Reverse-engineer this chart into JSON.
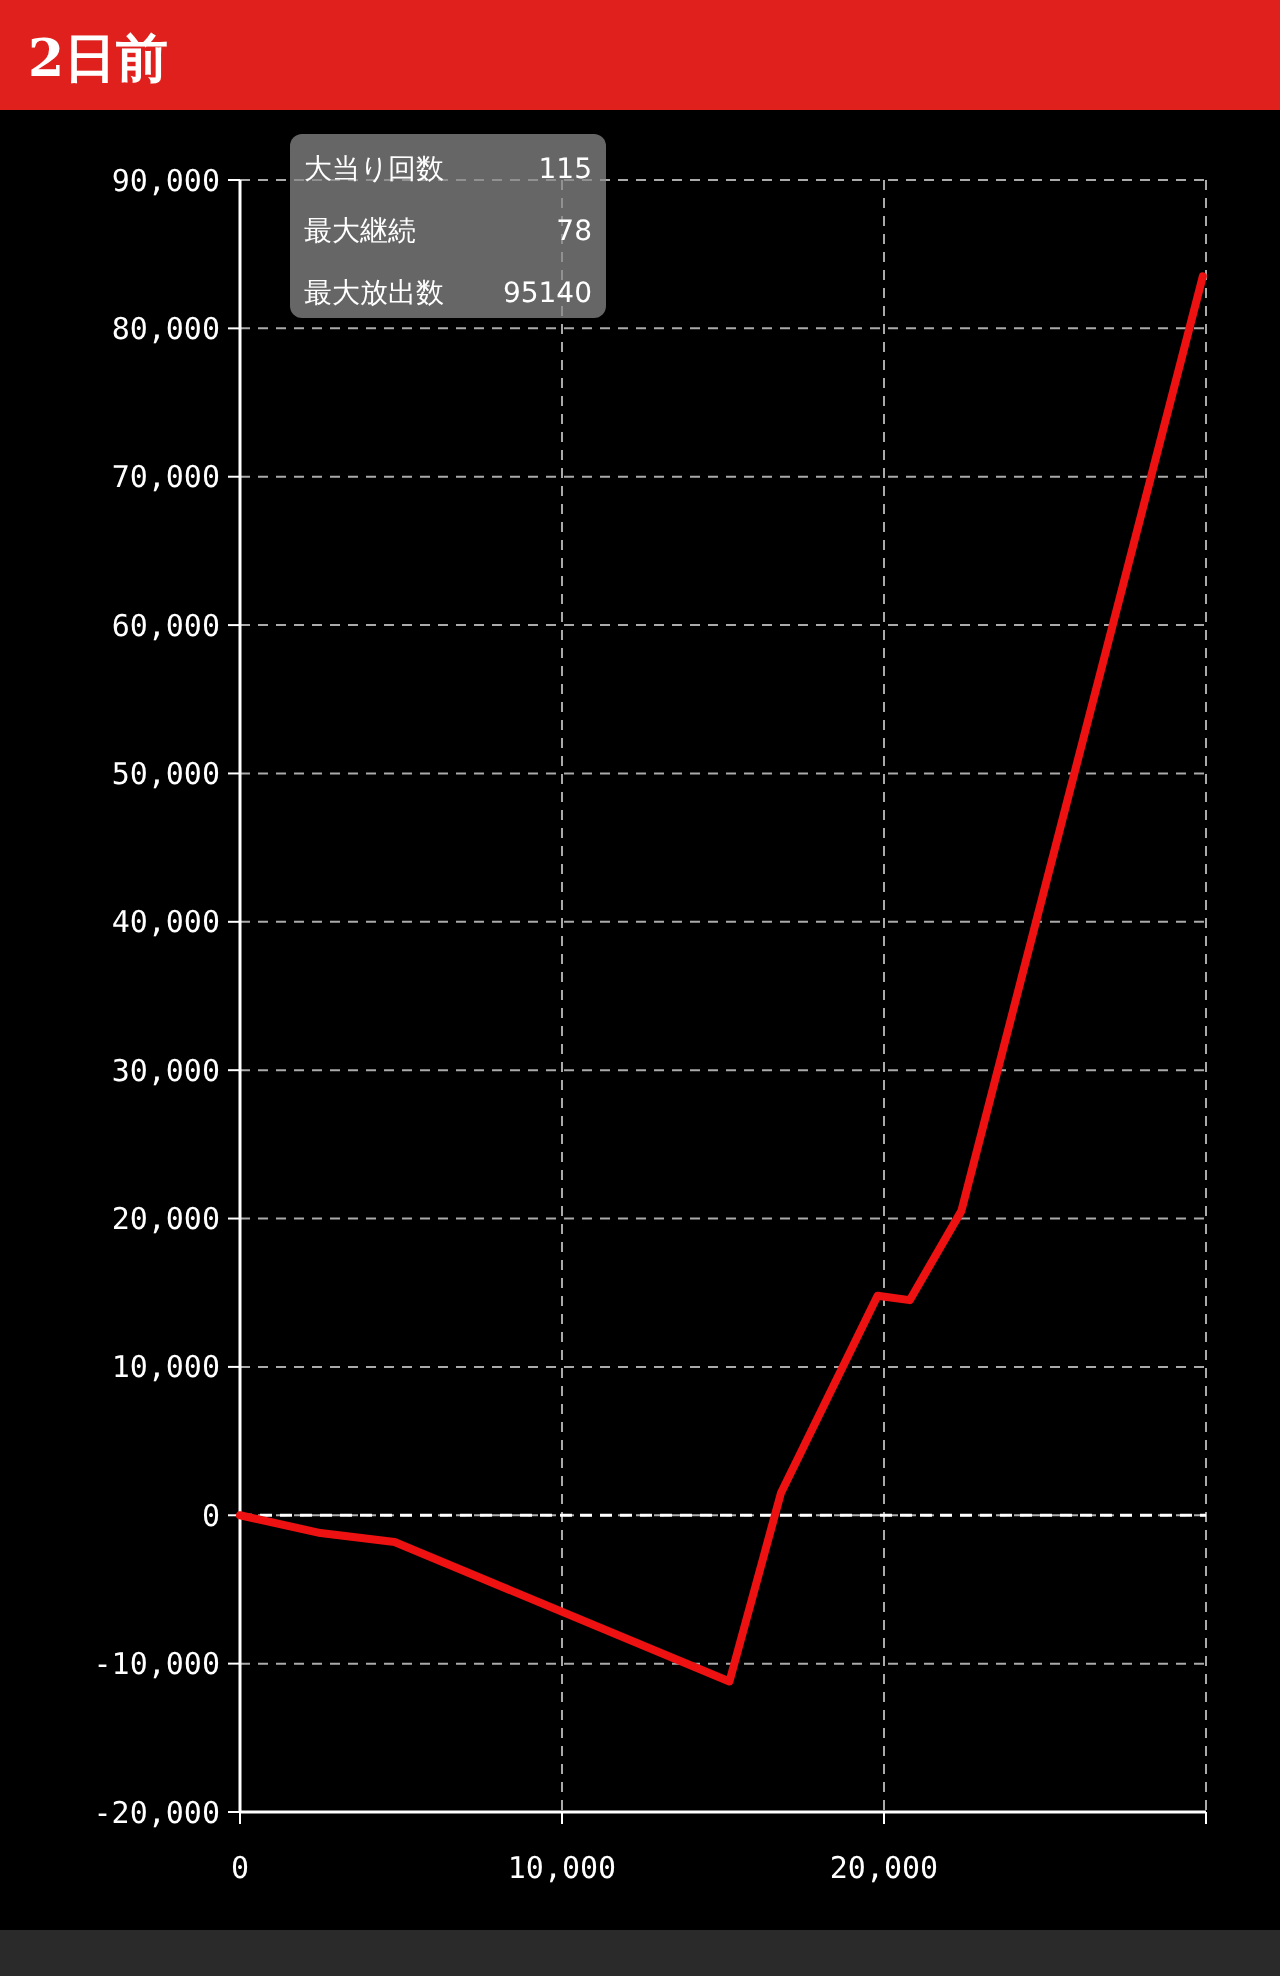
{
  "chart_data": {
    "type": "line",
    "title": "2日前",
    "annotations": [
      "大当り回数 115",
      "最大継続 78",
      "最大放出数 95140"
    ],
    "x": [
      0,
      2500,
      4800,
      15200,
      16800,
      19800,
      20800,
      22400,
      29900
    ],
    "series": [
      {
        "color": "#ee1111",
        "values": [
          0,
          -1200,
          -1800,
          -11200,
          1500,
          14800,
          14500,
          20500,
          83500
        ]
      }
    ],
    "xlim": [
      0,
      30000
    ],
    "xticks": [
      {
        "value": 0,
        "label": "0"
      },
      {
        "value": 10000,
        "label": "10,000"
      },
      {
        "value": 20000,
        "label": "20,000"
      },
      {
        "value": 30000,
        "label": null
      }
    ],
    "ylim": [
      -20000,
      90000
    ],
    "yticks": [
      {
        "value": -20000,
        "label": "-20,000"
      },
      {
        "value": -10000,
        "label": "-10,000"
      },
      {
        "value": 0,
        "label": "0"
      },
      {
        "value": 10000,
        "label": "10,000"
      },
      {
        "value": 20000,
        "label": "20,000"
      },
      {
        "value": 30000,
        "label": "30,000"
      },
      {
        "value": 40000,
        "label": "40,000"
      },
      {
        "value": 50000,
        "label": "50,000"
      },
      {
        "value": 60000,
        "label": "60,000"
      },
      {
        "value": 70000,
        "label": "70,000"
      },
      {
        "value": 80000,
        "label": "80,000"
      },
      {
        "value": 90000,
        "label": "90,000"
      }
    ],
    "grid": true,
    "line_style": "solid",
    "marker": "none",
    "ref_lines": [
      {
        "axis": "y",
        "value": 0,
        "color": "#ffffff",
        "line_style": "dashed"
      }
    ]
  }
}
